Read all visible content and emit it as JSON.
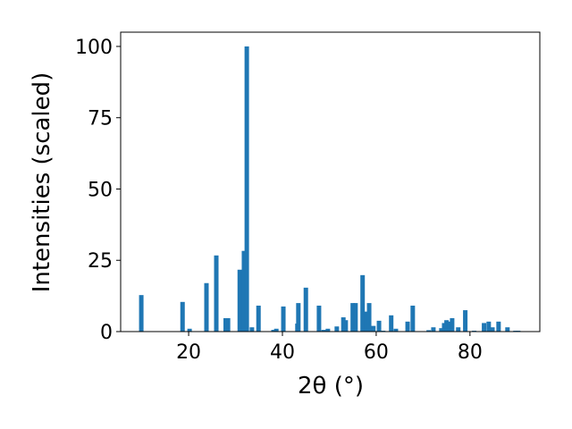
{
  "chart_data": {
    "type": "bar",
    "xlabel": "2θ (°)",
    "ylabel": "Intensities (scaled)",
    "color": "#1f77b4",
    "x": [
      9.9,
      18.7,
      20.2,
      23.8,
      25.9,
      27.9,
      28.4,
      30.9,
      31.8,
      32.4,
      33.5,
      34.9,
      38.1,
      38.7,
      40.2,
      43.2,
      43.4,
      45.0,
      47.8,
      48.8,
      49.7,
      51.6,
      53.0,
      53.5,
      55.0,
      55.6,
      57.1,
      57.9,
      58.5,
      59.4,
      60.6,
      61.5,
      63.2,
      64.2,
      66.7,
      67.8,
      71.2,
      72.2,
      73.9,
      74.5,
      75.0,
      75.6,
      76.2,
      77.5,
      79.0,
      80.9,
      83.0,
      84.0,
      84.8,
      86.1,
      88.0,
      89.7,
      90.3
    ],
    "values": [
      12.8,
      10.4,
      1,
      17,
      26.7,
      4.7,
      4.7,
      21.7,
      28.3,
      100,
      1.5,
      9.1,
      0.6,
      1,
      8.8,
      2.8,
      10,
      15.4,
      9.1,
      0.6,
      1,
      1.8,
      5,
      4,
      10,
      10,
      19.8,
      7,
      10,
      2,
      3.8,
      0.3,
      5.7,
      1,
      3.5,
      9.1,
      0.5,
      1.5,
      1.2,
      3,
      4,
      3.5,
      4.7,
      1.5,
      7.5,
      0.3,
      3,
      3.5,
      1.5,
      3.5,
      1.5,
      0.3,
      0.3
    ],
    "xlim": [
      5.5,
      94.9
    ],
    "xticks": [
      20,
      40,
      60,
      80
    ],
    "ylim": [
      0,
      105
    ],
    "yticks": [
      0,
      25,
      50,
      75,
      100
    ]
  }
}
